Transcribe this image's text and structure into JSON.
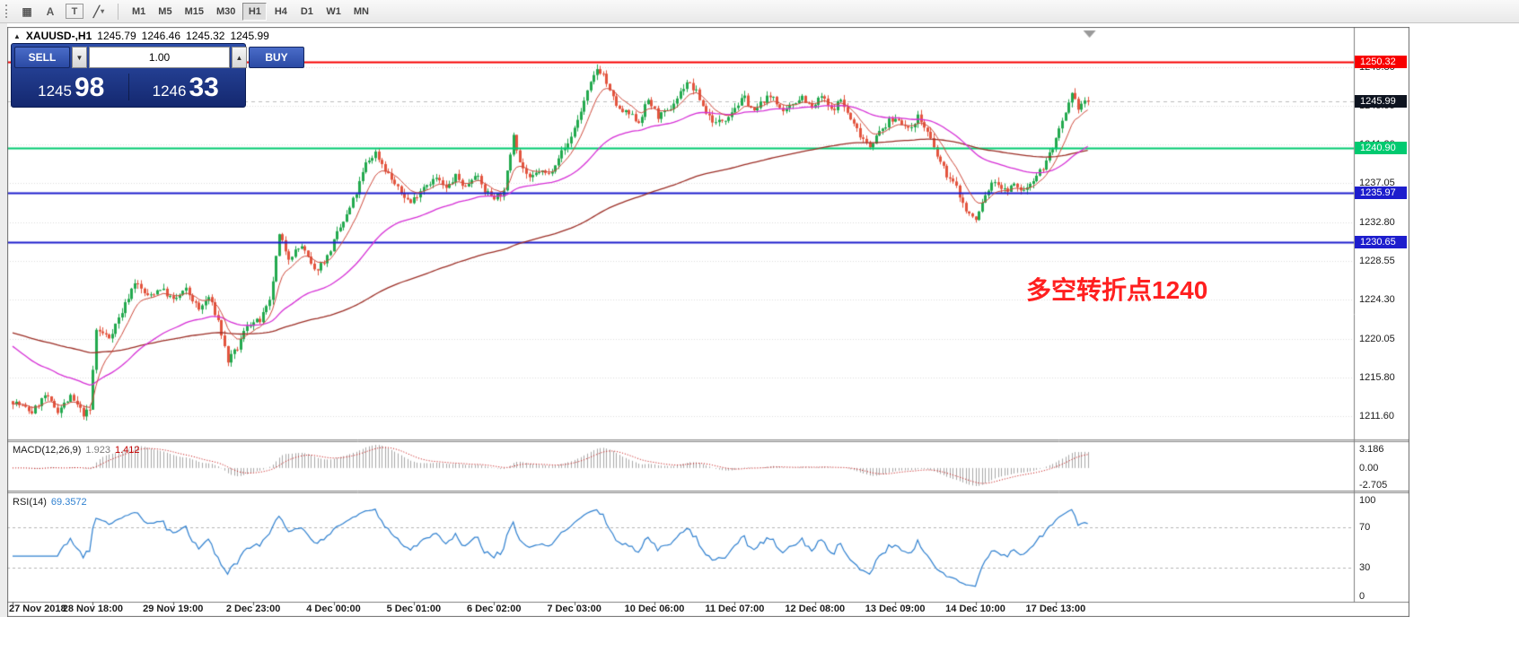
{
  "toolbar": {
    "tools": [
      {
        "name": "chart-grid",
        "glyph": "▦",
        "boxed": false,
        "caret": false
      },
      {
        "name": "cursor-tool",
        "glyph": "A",
        "boxed": false,
        "caret": false
      },
      {
        "name": "text-tool",
        "glyph": "T",
        "boxed": true,
        "caret": false
      },
      {
        "name": "draw-tool",
        "glyph": "╱",
        "boxed": false,
        "caret": true
      }
    ],
    "timeframes": [
      {
        "label": "M1",
        "active": false
      },
      {
        "label": "M5",
        "active": false
      },
      {
        "label": "M15",
        "active": false
      },
      {
        "label": "M30",
        "active": false
      },
      {
        "label": "H1",
        "active": true
      },
      {
        "label": "H4",
        "active": false
      },
      {
        "label": "D1",
        "active": false
      },
      {
        "label": "W1",
        "active": false
      },
      {
        "label": "MN",
        "active": false
      }
    ]
  },
  "header": {
    "marker_glyph": "▲",
    "symbol": "XAUUSD-,H1",
    "open": "1245.79",
    "high": "1246.46",
    "low": "1245.32",
    "close": "1245.99"
  },
  "trade_panel": {
    "sell_label": "SELL",
    "buy_label": "BUY",
    "volume": "1.00",
    "spin_down": "▼",
    "spin_up": "▲",
    "sell_price_main": "1245",
    "sell_price_pips": "98",
    "buy_price_main": "1246",
    "buy_price_pips": "33"
  },
  "annotation": {
    "text": "多空转折点1240",
    "color": "#ff1f1f"
  },
  "price_axis": {
    "ticks": [
      "1249.80",
      "1245.55",
      "1241.30",
      "1237.05",
      "1232.80",
      "1228.55",
      "1224.30",
      "1220.05",
      "1215.80",
      "1211.60"
    ],
    "current_price": {
      "label": "1245.99",
      "value": 1245.99,
      "bg": "#0e1420"
    }
  },
  "levels": [
    {
      "label": "1250.32",
      "value": 1250.32,
      "color": "#f80000",
      "width": 2
    },
    {
      "label": "1240.90",
      "value": 1240.9,
      "color": "#00ca70",
      "width": 2
    },
    {
      "label": "1235.97",
      "value": 1235.97,
      "color": "#1d1dcd",
      "width": 2
    },
    {
      "label": "1230.65",
      "value": 1230.65,
      "color": "#1d1dcd",
      "width": 2
    }
  ],
  "macd": {
    "name": "MACD(12,26,9)",
    "value_main": "1.923",
    "value_signal": "1.412",
    "axis": [
      "3.186",
      "0.00",
      "-2.705"
    ],
    "axis_values": [
      3.186,
      0,
      -2.705
    ],
    "params": [
      12,
      26,
      9
    ]
  },
  "rsi": {
    "name": "RSI(14)",
    "value": "69.3572",
    "axis": [
      "100",
      "70",
      "30",
      "0"
    ],
    "axis_values": [
      100,
      70,
      30,
      0
    ],
    "levels": [
      70,
      30
    ],
    "period": 14
  },
  "time_axis": [
    "27 Nov 2018",
    "28 Nov 18:00",
    "29 Nov 19:00",
    "2 Dec 23:00",
    "4 Dec 00:00",
    "5 Dec 01:00",
    "6 Dec 02:00",
    "7 Dec 03:00",
    "10 Dec 06:00",
    "11 Dec 07:00",
    "12 Dec 08:00",
    "13 Dec 09:00",
    "14 Dec 10:00",
    "17 Dec 13:00"
  ],
  "chart_data": {
    "type": "candlestick",
    "symbol": "XAUUSD-",
    "timeframe": "H1",
    "bars": 336,
    "bars_per_time_label": 25,
    "y_range": [
      1209.8,
      1252.8
    ],
    "y_ticks": [
      1249.8,
      1245.55,
      1241.3,
      1237.05,
      1232.8,
      1228.55,
      1224.3,
      1220.05,
      1215.8,
      1211.6
    ],
    "last_close": 1245.99,
    "horizontal_lines": [
      1250.32,
      1240.9,
      1235.97,
      1230.65
    ],
    "price_path": [
      [
        0,
        1213.2
      ],
      [
        6,
        1212.0
      ],
      [
        10,
        1213.8
      ],
      [
        14,
        1212.2
      ],
      [
        18,
        1213.6
      ],
      [
        22,
        1211.8
      ],
      [
        24,
        1212.2
      ],
      [
        26,
        1221.0
      ],
      [
        30,
        1220.2
      ],
      [
        34,
        1223.0
      ],
      [
        38,
        1226.3
      ],
      [
        42,
        1224.6
      ],
      [
        46,
        1225.6
      ],
      [
        50,
        1224.2
      ],
      [
        54,
        1225.4
      ],
      [
        58,
        1223.2
      ],
      [
        61,
        1224.6
      ],
      [
        64,
        1222.0
      ],
      [
        67,
        1217.6
      ],
      [
        70,
        1219.0
      ],
      [
        73,
        1221.6
      ],
      [
        77,
        1222.0
      ],
      [
        80,
        1224.0
      ],
      [
        83,
        1231.3
      ],
      [
        86,
        1229.0
      ],
      [
        90,
        1230.2
      ],
      [
        94,
        1227.4
      ],
      [
        98,
        1229.0
      ],
      [
        101,
        1231.5
      ],
      [
        104,
        1233.5
      ],
      [
        107,
        1236.0
      ],
      [
        110,
        1239.2
      ],
      [
        113,
        1240.4
      ],
      [
        116,
        1238.6
      ],
      [
        120,
        1236.4
      ],
      [
        124,
        1234.9
      ],
      [
        128,
        1236.8
      ],
      [
        132,
        1237.6
      ],
      [
        135,
        1236.4
      ],
      [
        138,
        1237.8
      ],
      [
        141,
        1236.6
      ],
      [
        144,
        1238.2
      ],
      [
        147,
        1236.2
      ],
      [
        150,
        1235.6
      ],
      [
        153,
        1236.0
      ],
      [
        156,
        1242.6
      ],
      [
        158,
        1239.4
      ],
      [
        161,
        1237.4
      ],
      [
        164,
        1238.4
      ],
      [
        167,
        1238.0
      ],
      [
        170,
        1240.0
      ],
      [
        173,
        1241.4
      ],
      [
        176,
        1244.0
      ],
      [
        179,
        1247.0
      ],
      [
        182,
        1249.6
      ],
      [
        184,
        1249.0
      ],
      [
        186,
        1247.0
      ],
      [
        189,
        1245.0
      ],
      [
        192,
        1244.6
      ],
      [
        195,
        1243.8
      ],
      [
        198,
        1246.2
      ],
      [
        201,
        1244.4
      ],
      [
        204,
        1244.8
      ],
      [
        207,
        1246.4
      ],
      [
        210,
        1248.2
      ],
      [
        213,
        1247.0
      ],
      [
        216,
        1244.8
      ],
      [
        219,
        1243.6
      ],
      [
        222,
        1244.2
      ],
      [
        225,
        1245.4
      ],
      [
        228,
        1246.4
      ],
      [
        231,
        1244.8
      ],
      [
        234,
        1246.2
      ],
      [
        237,
        1246.6
      ],
      [
        240,
        1244.6
      ],
      [
        243,
        1245.8
      ],
      [
        246,
        1246.6
      ],
      [
        249,
        1245.2
      ],
      [
        252,
        1246.6
      ],
      [
        255,
        1245.0
      ],
      [
        258,
        1246.2
      ],
      [
        261,
        1244.0
      ],
      [
        264,
        1242.4
      ],
      [
        267,
        1241.2
      ],
      [
        270,
        1242.6
      ],
      [
        273,
        1243.8
      ],
      [
        276,
        1244.2
      ],
      [
        279,
        1242.8
      ],
      [
        282,
        1244.4
      ],
      [
        285,
        1242.6
      ],
      [
        288,
        1240.0
      ],
      [
        291,
        1238.0
      ],
      [
        294,
        1236.6
      ],
      [
        297,
        1234.0
      ],
      [
        300,
        1233.0
      ],
      [
        303,
        1235.8
      ],
      [
        306,
        1237.4
      ],
      [
        309,
        1236.2
      ],
      [
        312,
        1236.8
      ],
      [
        315,
        1236.2
      ],
      [
        318,
        1237.6
      ],
      [
        321,
        1238.8
      ],
      [
        324,
        1241.0
      ],
      [
        327,
        1243.6
      ],
      [
        330,
        1246.6
      ],
      [
        332,
        1245.4
      ],
      [
        334,
        1246.1
      ],
      [
        335,
        1245.99
      ]
    ],
    "moving_averages": [
      {
        "type": "ema",
        "period": 9,
        "color": "#cf4a3c"
      },
      {
        "type": "ema",
        "period": 45,
        "color": "#d62ed6"
      },
      {
        "type": "ema",
        "period": 150,
        "color": "#9c2e26"
      }
    ],
    "colors": {
      "up": "#22a94e",
      "down": "#e3543e",
      "ma_fast": "#cf4a3c",
      "ma_mid": "#d62ed6",
      "ma_slow": "#9c2e26",
      "macd_hist": "#a8a8a8",
      "macd_signal": "#c40000",
      "rsi": "#2f80d0",
      "grid": "#dcdcdc",
      "bid_line": "#bcbcbc"
    }
  }
}
